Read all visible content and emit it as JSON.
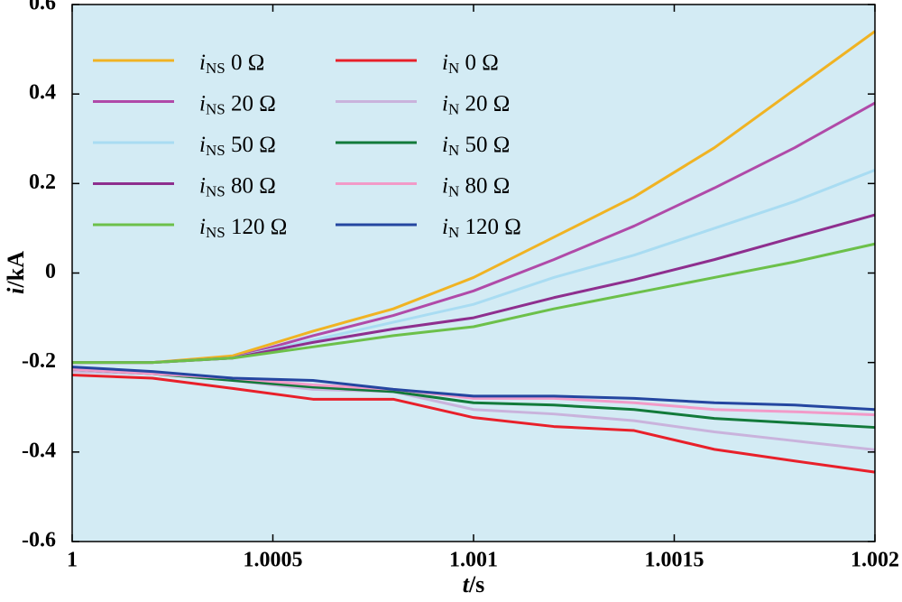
{
  "chart_data": {
    "type": "line",
    "xlabel": "t/s",
    "ylabel": "i/kA",
    "x": [
      1,
      1.0002,
      1.0004,
      1.0006,
      1.0008,
      1.001,
      1.0012,
      1.0014,
      1.0016,
      1.0018,
      1.002
    ],
    "xlim": [
      1,
      1.002
    ],
    "xticks": [
      1,
      1.0005,
      1.001,
      1.0015,
      1.002
    ],
    "ylim": [
      -0.6,
      0.6
    ],
    "yticks": [
      0.6,
      0.4,
      0.2,
      0,
      -0.2,
      -0.4,
      -0.6
    ],
    "grid": false,
    "background": "#d3ebf4",
    "series": [
      {
        "name": "iNS 0 Ω",
        "color": "#f0b323",
        "values": [
          -0.2,
          -0.2,
          -0.185,
          -0.13,
          -0.08,
          -0.01,
          0.08,
          0.17,
          0.28,
          0.41,
          0.54
        ]
      },
      {
        "name": "iNS 20 Ω",
        "color": "#b04aa8",
        "values": [
          -0.2,
          -0.2,
          -0.19,
          -0.14,
          -0.095,
          -0.04,
          0.03,
          0.105,
          0.19,
          0.28,
          0.38
        ]
      },
      {
        "name": "iNS 50 Ω",
        "color": "#a9dcf2",
        "values": [
          -0.2,
          -0.2,
          -0.19,
          -0.15,
          -0.11,
          -0.07,
          -0.01,
          0.04,
          0.1,
          0.16,
          0.23
        ]
      },
      {
        "name": "iNS 80 Ω",
        "color": "#8e2f8e",
        "values": [
          -0.2,
          -0.2,
          -0.19,
          -0.155,
          -0.125,
          -0.1,
          -0.055,
          -0.015,
          0.03,
          0.08,
          0.13
        ]
      },
      {
        "name": "iNS 120 Ω",
        "color": "#6cc04a",
        "values": [
          -0.2,
          -0.2,
          -0.19,
          -0.165,
          -0.14,
          -0.12,
          -0.08,
          -0.045,
          -0.01,
          0.025,
          0.065
        ]
      },
      {
        "name": "iN 0 Ω",
        "color": "#e8202a",
        "values": [
          -0.228,
          -0.235,
          -0.258,
          -0.282,
          -0.282,
          -0.323,
          -0.343,
          -0.352,
          -0.394,
          -0.42,
          -0.445
        ]
      },
      {
        "name": "iN 20 Ω",
        "color": "#c9b3dc",
        "values": [
          -0.22,
          -0.225,
          -0.24,
          -0.26,
          -0.265,
          -0.305,
          -0.315,
          -0.33,
          -0.355,
          -0.375,
          -0.395
        ]
      },
      {
        "name": "iN 50 Ω",
        "color": "#127a3a",
        "values": [
          -0.215,
          -0.225,
          -0.24,
          -0.255,
          -0.265,
          -0.29,
          -0.295,
          -0.305,
          -0.325,
          -0.335,
          -0.345
        ]
      },
      {
        "name": "iN 80 Ω",
        "color": "#f29ac8",
        "values": [
          -0.215,
          -0.225,
          -0.235,
          -0.25,
          -0.26,
          -0.28,
          -0.28,
          -0.29,
          -0.305,
          -0.31,
          -0.317
        ]
      },
      {
        "name": "iN 120 Ω",
        "color": "#2446a0",
        "values": [
          -0.21,
          -0.22,
          -0.235,
          -0.24,
          -0.26,
          -0.275,
          -0.275,
          -0.28,
          -0.29,
          -0.295,
          -0.305
        ]
      }
    ]
  }
}
